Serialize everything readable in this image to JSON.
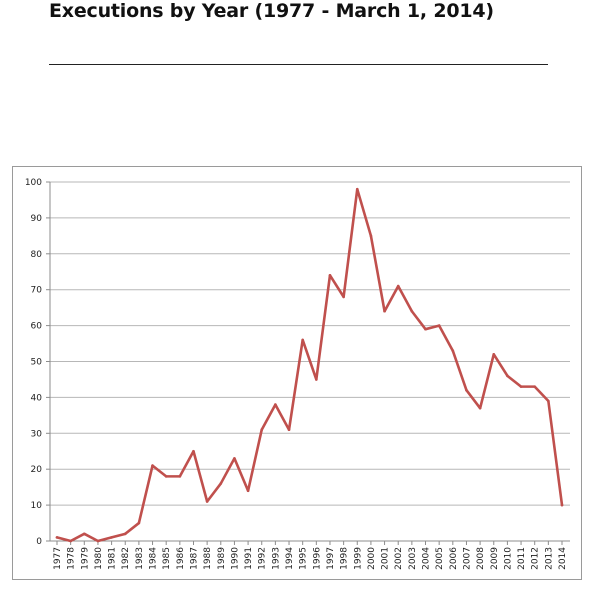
{
  "page": {
    "title": "Executions by Year (1977 - March 1, 2014)"
  },
  "colors": {
    "line": "#c0504d",
    "grid": "#b7b7b7",
    "axis": "#8c8c8c"
  },
  "chart_data": {
    "type": "line",
    "title": "",
    "xlabel": "",
    "ylabel": "",
    "ylim": [
      0,
      100
    ],
    "yticks": [
      0,
      10,
      20,
      30,
      40,
      50,
      60,
      70,
      80,
      90,
      100
    ],
    "grid": true,
    "legend": "none",
    "categories": [
      "1977",
      "1978",
      "1979",
      "1980",
      "1981",
      "1982",
      "1983",
      "1984",
      "1985",
      "1986",
      "1987",
      "1988",
      "1989",
      "1990",
      "1991",
      "1992",
      "1993",
      "1994",
      "1995",
      "1996",
      "1997",
      "1998",
      "1999",
      "2000",
      "2001",
      "2002",
      "2003",
      "2004",
      "2005",
      "2006",
      "2007",
      "2008",
      "2009",
      "2010",
      "2011",
      "2012",
      "2013",
      "2014"
    ],
    "series": [
      {
        "values": [
          1,
          0,
          2,
          0,
          1,
          2,
          5,
          21,
          18,
          18,
          25,
          11,
          16,
          23,
          14,
          31,
          38,
          31,
          56,
          45,
          74,
          68,
          98,
          85,
          64,
          71,
          64,
          59,
          60,
          53,
          42,
          37,
          52,
          46,
          43,
          43,
          39,
          10
        ]
      }
    ]
  }
}
